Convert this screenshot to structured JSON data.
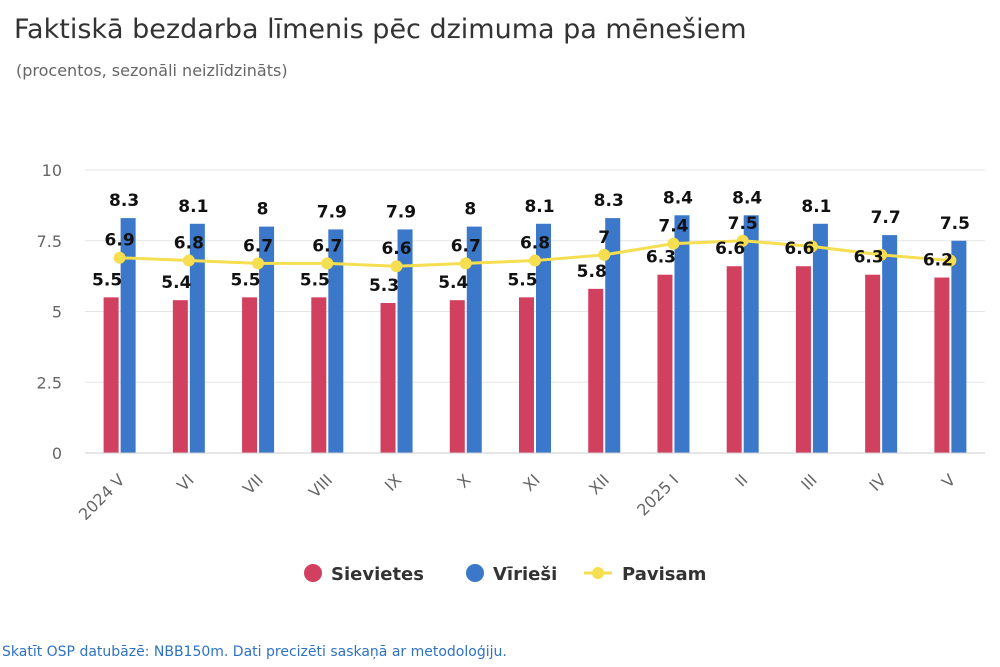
{
  "header": {
    "title": "Faktiskā bezdarba līmenis pēc dzimuma pa mēnešiem",
    "subtitle": "(procentos, sezonāli neizlīdzināts)"
  },
  "footer": {
    "link_text": "Skatīt OSP datubāzē: NBB150m. Dati precizēti saskaņā ar metodoloģiju."
  },
  "chart_data": {
    "type": "bar",
    "title": "Faktiskā bezdarba līmenis pēc dzimuma pa mēnešiem",
    "subtitle": "(procentos, sezonāli neizlīdzināts)",
    "categories": [
      "2024 V",
      "VI",
      "VII",
      "VIII",
      "IX",
      "X",
      "XI",
      "XII",
      "2025 I",
      "II",
      "III",
      "IV",
      "V"
    ],
    "series": [
      {
        "name": "Sievietes",
        "type": "bar",
        "color": "#d1405f",
        "values": [
          5.5,
          5.4,
          5.5,
          5.5,
          5.3,
          5.4,
          5.5,
          5.8,
          6.3,
          6.6,
          6.6,
          6.3,
          6.2
        ]
      },
      {
        "name": "Vīrieši",
        "type": "bar",
        "color": "#3b78c9",
        "values": [
          8.3,
          8.1,
          8,
          7.9,
          7.9,
          8,
          8.1,
          8.3,
          8.4,
          8.4,
          8.1,
          7.7,
          7.5
        ]
      },
      {
        "name": "Pavisam",
        "type": "line",
        "color": "#f5de4f",
        "values": [
          6.9,
          6.8,
          6.7,
          6.7,
          6.6,
          6.7,
          6.8,
          7,
          7.4,
          7.5,
          7.3,
          7,
          6.8
        ]
      }
    ],
    "data_labels": {
      "Sievietes": [
        "5.5",
        "5.4",
        "5.5",
        "5.5",
        "5.3",
        "5.4",
        "5.5",
        "5.8",
        "6.3",
        "6.6",
        "6.6",
        "6.3",
        "6.2"
      ],
      "Vīrieši": [
        "8.3",
        "8.1",
        "8",
        "7.9",
        "7.9",
        "8",
        "8.1",
        "8.3",
        "8.4",
        "8.4",
        "8.1",
        "7.7",
        "7.5"
      ],
      "Pavisam": [
        "6.9",
        "6.8",
        "6.7",
        "6.7",
        "6.6",
        "6.7",
        "6.8",
        "7",
        "7.4",
        "7.5",
        "",
        "",
        ""
      ]
    },
    "ylim": [
      0,
      10
    ],
    "yticks": [
      0,
      2.5,
      5,
      7.5,
      10
    ],
    "ytick_labels": [
      "0",
      "2.5",
      "5",
      "7.5",
      "10"
    ],
    "grid": true,
    "legend_position": "bottom",
    "label_color": "#111111",
    "axis_color": "#666666",
    "grid_color": "#e6e6e6"
  }
}
